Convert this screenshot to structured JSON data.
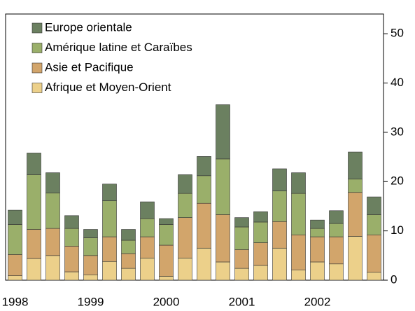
{
  "chart_data": {
    "type": "stacked_bar",
    "categories": [
      "1998",
      null,
      null,
      null,
      "1999",
      null,
      null,
      null,
      "2000",
      null,
      null,
      null,
      "2001",
      null,
      null,
      null,
      "2002",
      null,
      null,
      null
    ],
    "series": [
      {
        "name": "Afrique et Moyen-Orient",
        "color": "#ecd08a",
        "values": [
          0.9,
          4.4,
          5.0,
          1.7,
          1.1,
          3.8,
          2.4,
          4.5,
          0.8,
          4.5,
          6.5,
          3.7,
          2.4,
          3.0,
          6.5,
          2.1,
          3.7,
          3.3,
          8.9,
          1.6
        ]
      },
      {
        "name": "Asie et Pacifique",
        "color": "#d2a56b",
        "values": [
          4.3,
          5.9,
          5.5,
          5.2,
          3.9,
          5.0,
          3.0,
          4.3,
          6.3,
          8.2,
          9.1,
          9.6,
          3.8,
          4.6,
          5.4,
          7.1,
          5.1,
          5.5,
          8.9,
          7.6
        ]
      },
      {
        "name": "Amérique latine et Caraïbes",
        "color": "#9aaf6a",
        "values": [
          6.1,
          11.1,
          7.2,
          3.6,
          3.6,
          7.3,
          2.7,
          3.7,
          4.2,
          4.9,
          5.6,
          11.3,
          4.6,
          4.2,
          6.2,
          8.4,
          1.7,
          2.7,
          2.7,
          4.1
        ]
      },
      {
        "name": "Europe orientale",
        "color": "#6b8060",
        "values": [
          2.9,
          4.4,
          4.1,
          2.6,
          1.7,
          3.4,
          2.2,
          3.4,
          1.2,
          3.8,
          3.9,
          11.0,
          1.9,
          2.1,
          4.5,
          4.2,
          1.7,
          2.6,
          5.5,
          3.6
        ]
      }
    ],
    "ylim": [
      0,
      54
    ],
    "yticks": [
      0,
      10,
      20,
      30,
      40,
      50
    ],
    "legend": "upper left"
  }
}
